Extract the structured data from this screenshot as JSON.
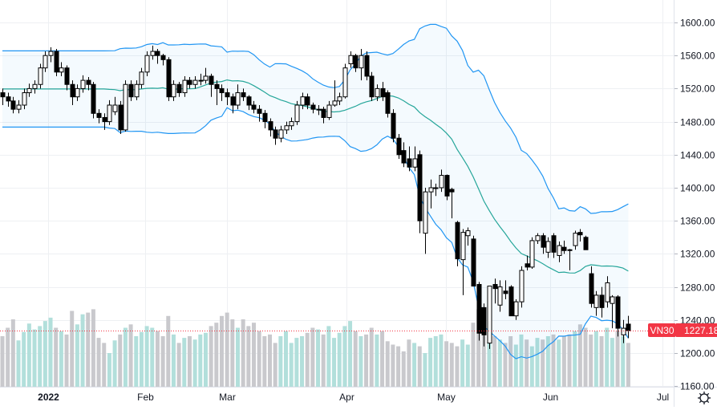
{
  "chart_data": {
    "type": "candlestick",
    "symbol": "VN30",
    "last_price": "1227.18",
    "y_ticks": [
      "1160.00",
      "1200.00",
      "1240.00",
      "1280.00",
      "1320.00",
      "1360.00",
      "1400.00",
      "1440.00",
      "1480.00",
      "1520.00",
      "1560.00",
      "1600.00"
    ],
    "ylim": [
      1160,
      1600
    ],
    "x_ticks": [
      "2022",
      "Feb",
      "Mar",
      "Apr",
      "May",
      "Jun",
      "Jul"
    ],
    "grid": true,
    "indicator": "Bollinger Bands (20, 2)",
    "colors": {
      "band_line": "#2196f3",
      "basis_line": "#26a69a",
      "band_fill": "#2196f3",
      "candle": "#000000",
      "volume_up": "#b2dfdb",
      "volume_down": "#c9c9cd",
      "last_price": "#f23645"
    },
    "ohlc": [
      [
        1515,
        1520,
        1500,
        1510
      ],
      [
        1510,
        1515,
        1498,
        1505
      ],
      [
        1505,
        1510,
        1490,
        1495
      ],
      [
        1495,
        1506,
        1490,
        1500
      ],
      [
        1500,
        1520,
        1495,
        1515
      ],
      [
        1515,
        1526,
        1510,
        1520
      ],
      [
        1520,
        1530,
        1514,
        1525
      ],
      [
        1525,
        1550,
        1520,
        1545
      ],
      [
        1545,
        1565,
        1540,
        1560
      ],
      [
        1560,
        1570,
        1552,
        1565
      ],
      [
        1565,
        1568,
        1535,
        1540
      ],
      [
        1540,
        1552,
        1535,
        1545
      ],
      [
        1545,
        1548,
        1518,
        1525
      ],
      [
        1525,
        1530,
        1500,
        1510
      ],
      [
        1510,
        1525,
        1505,
        1520
      ],
      [
        1520,
        1536,
        1515,
        1530
      ],
      [
        1530,
        1534,
        1518,
        1525
      ],
      [
        1525,
        1528,
        1484,
        1490
      ],
      [
        1490,
        1495,
        1478,
        1485
      ],
      [
        1485,
        1490,
        1470,
        1480
      ],
      [
        1480,
        1506,
        1476,
        1500
      ],
      [
        1492,
        1510,
        1488,
        1500
      ],
      [
        1500,
        1505,
        1465,
        1470
      ],
      [
        1470,
        1530,
        1468,
        1525
      ],
      [
        1525,
        1530,
        1505,
        1510
      ],
      [
        1510,
        1530,
        1506,
        1525
      ],
      [
        1525,
        1545,
        1520,
        1540
      ],
      [
        1540,
        1565,
        1535,
        1560
      ],
      [
        1560,
        1572,
        1555,
        1565
      ],
      [
        1565,
        1568,
        1550,
        1560
      ],
      [
        1560,
        1562,
        1548,
        1555
      ],
      [
        1555,
        1558,
        1505,
        1510
      ],
      [
        1510,
        1530,
        1505,
        1525
      ],
      [
        1525,
        1528,
        1510,
        1515
      ],
      [
        1515,
        1535,
        1510,
        1530
      ],
      [
        1530,
        1534,
        1520,
        1525
      ],
      [
        1525,
        1535,
        1520,
        1530
      ],
      [
        1530,
        1538,
        1524,
        1530
      ],
      [
        1530,
        1545,
        1526,
        1535
      ],
      [
        1535,
        1538,
        1510,
        1525
      ],
      [
        1525,
        1530,
        1500,
        1520
      ],
      [
        1520,
        1525,
        1505,
        1515
      ],
      [
        1515,
        1520,
        1500,
        1510
      ],
      [
        1510,
        1514,
        1490,
        1500
      ],
      [
        1500,
        1525,
        1495,
        1515
      ],
      [
        1515,
        1520,
        1505,
        1510
      ],
      [
        1510,
        1512,
        1494,
        1500
      ],
      [
        1500,
        1505,
        1490,
        1495
      ],
      [
        1495,
        1500,
        1480,
        1490
      ],
      [
        1490,
        1494,
        1472,
        1480
      ],
      [
        1480,
        1484,
        1462,
        1470
      ],
      [
        1470,
        1474,
        1452,
        1460
      ],
      [
        1460,
        1475,
        1455,
        1470
      ],
      [
        1470,
        1480,
        1465,
        1475
      ],
      [
        1475,
        1485,
        1470,
        1480
      ],
      [
        1480,
        1505,
        1476,
        1500
      ],
      [
        1500,
        1515,
        1495,
        1510
      ],
      [
        1510,
        1514,
        1495,
        1500
      ],
      [
        1500,
        1503,
        1490,
        1495
      ],
      [
        1495,
        1500,
        1488,
        1495
      ],
      [
        1495,
        1498,
        1478,
        1485
      ],
      [
        1485,
        1505,
        1482,
        1500
      ],
      [
        1500,
        1530,
        1498,
        1505
      ],
      [
        1505,
        1515,
        1500,
        1510
      ],
      [
        1510,
        1550,
        1508,
        1545
      ],
      [
        1550,
        1565,
        1545,
        1560
      ],
      [
        1560,
        1562,
        1540,
        1545
      ],
      [
        1545,
        1568,
        1530,
        1560
      ],
      [
        1560,
        1565,
        1530,
        1535
      ],
      [
        1535,
        1540,
        1505,
        1510
      ],
      [
        1510,
        1525,
        1505,
        1520
      ],
      [
        1520,
        1528,
        1505,
        1510
      ],
      [
        1515,
        1518,
        1485,
        1490
      ],
      [
        1490,
        1495,
        1455,
        1460
      ],
      [
        1460,
        1465,
        1435,
        1440
      ],
      [
        1445,
        1455,
        1425,
        1430
      ],
      [
        1435,
        1450,
        1420,
        1425
      ],
      [
        1425,
        1450,
        1420,
        1435
      ],
      [
        1440,
        1445,
        1345,
        1360
      ],
      [
        1345,
        1400,
        1320,
        1395
      ],
      [
        1395,
        1410,
        1375,
        1400
      ],
      [
        1400,
        1405,
        1390,
        1400
      ],
      [
        1400,
        1422,
        1395,
        1415
      ],
      [
        1415,
        1416,
        1385,
        1390
      ],
      [
        1398,
        1400,
        1363,
        1395
      ],
      [
        1358,
        1360,
        1305,
        1314
      ],
      [
        1313,
        1350,
        1270,
        1346
      ],
      [
        1342,
        1352,
        1330,
        1348
      ],
      [
        1338,
        1342,
        1281,
        1281
      ],
      [
        1283,
        1286,
        1215,
        1224
      ],
      [
        1255,
        1260,
        1208,
        1222
      ],
      [
        1212,
        1281,
        1205,
        1281
      ],
      [
        1283,
        1290,
        1260,
        1278
      ],
      [
        1258,
        1288,
        1250,
        1280
      ],
      [
        1275,
        1288,
        1265,
        1272
      ],
      [
        1280,
        1282,
        1245,
        1245
      ],
      [
        1245,
        1265,
        1240,
        1262
      ],
      [
        1262,
        1305,
        1255,
        1300
      ],
      [
        1308,
        1318,
        1300,
        1304
      ],
      [
        1304,
        1340,
        1302,
        1336
      ],
      [
        1336,
        1345,
        1332,
        1342
      ],
      [
        1342,
        1345,
        1320,
        1328
      ],
      [
        1322,
        1340,
        1315,
        1335
      ],
      [
        1342,
        1345,
        1315,
        1322
      ],
      [
        1318,
        1335,
        1310,
        1330
      ],
      [
        1328,
        1336,
        1320,
        1324
      ],
      [
        1325,
        1326,
        1300,
        1324
      ],
      [
        1330,
        1348,
        1325,
        1345
      ],
      [
        1346,
        1350,
        1335,
        1343
      ],
      [
        1340,
        1342,
        1325,
        1325
      ],
      [
        1296,
        1305,
        1255,
        1260
      ],
      [
        1255,
        1275,
        1245,
        1270
      ],
      [
        1270,
        1280,
        1243,
        1255
      ],
      [
        1262,
        1293,
        1255,
        1285
      ],
      [
        1260,
        1270,
        1230,
        1268
      ],
      [
        1268,
        1270,
        1220,
        1230
      ],
      [
        1222,
        1240,
        1212,
        1230
      ],
      [
        1235,
        1245,
        1218,
        1227.18
      ]
    ],
    "volume": [
      60,
      70,
      80,
      55,
      65,
      75,
      68,
      72,
      78,
      82,
      70,
      66,
      62,
      90,
      74,
      86,
      88,
      92,
      58,
      52,
      40,
      55,
      62,
      70,
      74,
      60,
      65,
      72,
      70,
      66,
      60,
      84,
      62,
      52,
      58,
      60,
      56,
      62,
      64,
      72,
      76,
      84,
      88,
      80,
      70,
      80,
      72,
      76,
      66,
      60,
      62,
      52,
      60,
      66,
      52,
      58,
      60,
      64,
      70,
      68,
      62,
      72,
      58,
      64,
      72,
      78,
      66,
      60,
      62,
      70,
      62,
      66,
      54,
      50,
      48,
      42,
      56,
      52,
      48,
      40,
      58,
      60,
      62,
      54,
      52,
      48,
      56,
      50,
      76,
      92,
      74,
      66,
      60,
      56,
      52,
      60,
      50,
      62,
      56,
      48,
      58,
      56,
      60,
      62,
      56,
      60,
      62,
      66,
      74,
      70,
      62,
      66,
      60,
      70,
      58,
      66,
      60,
      52
    ]
  },
  "price_label": {
    "symbol": "VN30",
    "value": "1227.18"
  },
  "settings_icon": "gear-icon"
}
